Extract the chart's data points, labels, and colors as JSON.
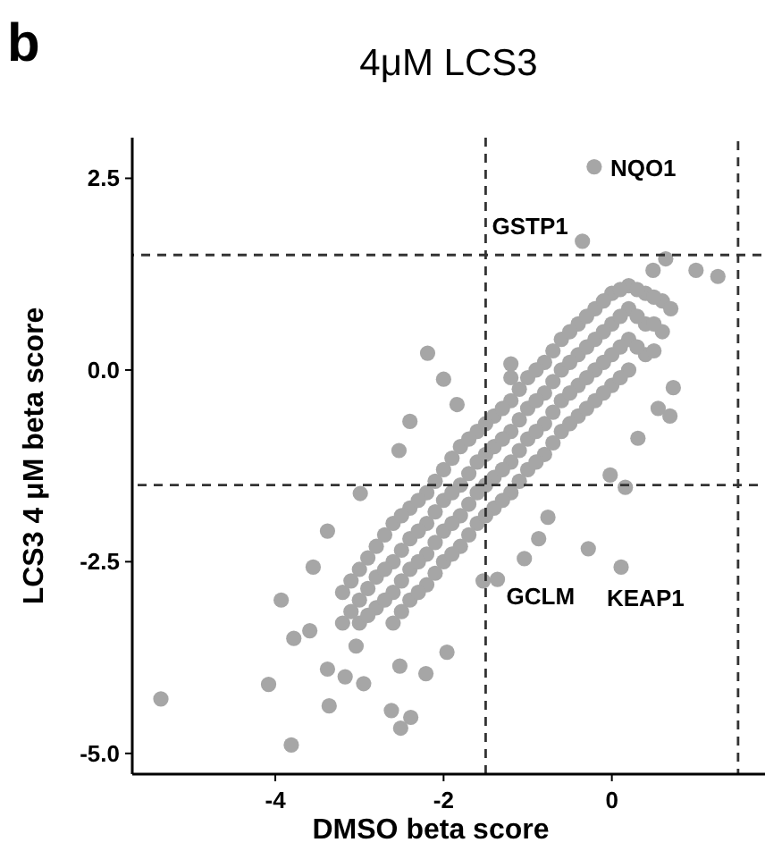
{
  "chart_data": {
    "type": "scatter",
    "title": "4μM LCS3",
    "xlabel": "DMSO beta score",
    "ylabel": "LCS3 4 μM beta score",
    "xlim": [
      -5.7,
      1.82
    ],
    "ylim": [
      -5.27,
      3.03
    ],
    "xticks": [
      -4,
      -2,
      0
    ],
    "yticks": [
      {
        "value": -5,
        "label": "-5.0"
      },
      -2.5,
      {
        "value": 0,
        "label": "0.0"
      },
      2.5
    ],
    "grid": false,
    "marker": "circle",
    "ref_lines": [
      {
        "axis": "x",
        "value": -1.5,
        "color": "#333333",
        "line_style": "dashed"
      },
      {
        "axis": "x",
        "value": 1.5,
        "color": "#333333",
        "line_style": "dashed"
      },
      {
        "axis": "y",
        "value": 1.5,
        "color": "#333333",
        "line_style": "dashed"
      },
      {
        "axis": "y",
        "value": -1.5,
        "color": "#333333",
        "line_style": "dashed"
      }
    ],
    "annotations": [
      "b",
      {
        "text": "NQO1",
        "x": -0.21,
        "y": 2.65
      },
      {
        "text": "GSTP1",
        "x": -0.35,
        "y": 1.68
      },
      {
        "text": "GCLM",
        "x": -1.36,
        "y": -2.73
      },
      {
        "text": "KEAP1",
        "x": 0.11,
        "y": -2.57
      }
    ],
    "series": [
      {
        "color": "#a6a6a6",
        "x": [
          -0.21,
          -0.35,
          -1.36,
          0.11,
          -2.19,
          -2.0,
          -1.84,
          -2.4,
          -1.2,
          -1.2,
          0.69,
          0.73,
          0.55,
          1.26,
          1.0,
          0.64,
          0.49,
          -2.53,
          -2.99,
          -5.36,
          -3.81,
          -4.08,
          -3.93,
          -3.78,
          -3.36,
          -2.62,
          -2.51,
          -2.39,
          -2.21,
          -1.96,
          -2.95,
          -3.38,
          -3.17,
          -3.55,
          -3.38,
          -3.59,
          -3.04,
          -2.52,
          -0.28,
          -0.02,
          0.16,
          0.31,
          -0.76,
          -0.87,
          -1.04,
          -1.53,
          -3.2,
          -3.2,
          -3.0,
          -3.0,
          -3.0,
          -2.8,
          -2.8,
          -2.8,
          -2.6,
          -2.6,
          -2.6,
          -2.6,
          -2.4,
          -2.4,
          -2.4,
          -2.4,
          -2.2,
          -2.2,
          -2.2,
          -2.2,
          -2.0,
          -2.0,
          -2.0,
          -2.0,
          -1.8,
          -1.8,
          -1.8,
          -1.8,
          -1.6,
          -1.6,
          -1.6,
          -1.6,
          -1.4,
          -1.4,
          -1.4,
          -1.4,
          -1.2,
          -1.2,
          -1.2,
          -1.2,
          -1.0,
          -1.0,
          -1.0,
          -1.0,
          -0.8,
          -0.8,
          -0.8,
          -0.8,
          -0.6,
          -0.6,
          -0.6,
          -0.6,
          -0.4,
          -0.4,
          -0.4,
          -0.4,
          -0.2,
          -0.2,
          -0.2,
          -0.2,
          0.0,
          0.0,
          0.0,
          0.0,
          0.2,
          0.2,
          0.2,
          0.2,
          0.4,
          0.4,
          0.4,
          0.6,
          0.6,
          -3.1,
          -3.1,
          -2.9,
          -2.9,
          -2.9,
          -2.7,
          -2.7,
          -2.7,
          -2.5,
          -2.5,
          -2.5,
          -2.5,
          -2.3,
          -2.3,
          -2.3,
          -2.3,
          -2.1,
          -2.1,
          -2.1,
          -2.1,
          -1.9,
          -1.9,
          -1.9,
          -1.9,
          -1.7,
          -1.7,
          -1.7,
          -1.7,
          -1.5,
          -1.5,
          -1.5,
          -1.5,
          -1.3,
          -1.3,
          -1.3,
          -1.3,
          -1.1,
          -1.1,
          -1.1,
          -1.1,
          -0.9,
          -0.9,
          -0.9,
          -0.9,
          -0.7,
          -0.7,
          -0.7,
          -0.7,
          -0.5,
          -0.5,
          -0.5,
          -0.5,
          -0.3,
          -0.3,
          -0.3,
          -0.3,
          -0.1,
          -0.1,
          -0.1,
          -0.1,
          0.1,
          0.1,
          0.1,
          0.1,
          0.3,
          0.3,
          0.3,
          0.5,
          0.5,
          0.5,
          0.7
        ],
        "values": [
          2.65,
          1.68,
          -2.73,
          -2.57,
          0.22,
          -0.12,
          -0.45,
          -0.67,
          0.08,
          -0.1,
          -0.6,
          -0.23,
          -0.5,
          1.22,
          1.3,
          1.45,
          1.3,
          -1.05,
          -1.61,
          -4.29,
          -4.89,
          -4.1,
          -3.0,
          -3.5,
          -4.38,
          -4.44,
          -4.67,
          -4.53,
          -3.96,
          -3.68,
          -4.09,
          -3.9,
          -4.0,
          -2.57,
          -2.1,
          -3.4,
          -3.6,
          -3.86,
          -2.33,
          -1.37,
          -1.53,
          -0.89,
          -1.92,
          -2.2,
          -2.46,
          -2.75,
          -2.9,
          -3.3,
          -2.6,
          -3.0,
          -3.3,
          -2.3,
          -2.7,
          -3.1,
          -2.0,
          -2.5,
          -2.9,
          -3.3,
          -1.8,
          -2.2,
          -2.6,
          -3.0,
          -1.6,
          -2.0,
          -2.4,
          -2.8,
          -1.3,
          -1.7,
          -2.1,
          -2.5,
          -1.0,
          -1.5,
          -1.9,
          -2.3,
          -0.8,
          -1.2,
          -1.6,
          -2.0,
          -0.6,
          -1.0,
          -1.4,
          -1.8,
          -0.4,
          -0.8,
          -1.2,
          -1.6,
          -0.1,
          -0.5,
          -0.9,
          -1.3,
          0.1,
          -0.3,
          -0.7,
          -1.1,
          0.4,
          0.0,
          -0.4,
          -0.8,
          0.6,
          0.2,
          -0.2,
          -0.6,
          0.8,
          0.4,
          0.0,
          -0.4,
          1.0,
          0.6,
          0.2,
          -0.2,
          1.1,
          0.8,
          0.4,
          0.0,
          1.0,
          0.6,
          0.2,
          0.9,
          0.5,
          -2.75,
          -3.15,
          -2.45,
          -2.85,
          -3.2,
          -2.15,
          -2.6,
          -3.0,
          -1.9,
          -2.35,
          -2.75,
          -3.15,
          -1.7,
          -2.1,
          -2.5,
          -2.9,
          -1.45,
          -1.85,
          -2.25,
          -2.65,
          -1.15,
          -1.6,
          -2.0,
          -2.4,
          -0.9,
          -1.35,
          -1.75,
          -2.15,
          -0.7,
          -1.1,
          -1.5,
          -1.9,
          -0.5,
          -0.9,
          -1.3,
          -1.7,
          -0.25,
          -0.65,
          -1.05,
          -1.45,
          0.0,
          -0.4,
          -0.8,
          -1.2,
          0.25,
          -0.15,
          -0.55,
          -0.95,
          0.5,
          0.1,
          -0.3,
          -0.7,
          0.7,
          0.3,
          -0.1,
          -0.5,
          0.9,
          0.5,
          0.1,
          -0.3,
          1.05,
          0.7,
          0.3,
          -0.1,
          1.05,
          0.7,
          0.3,
          0.95,
          0.6,
          0.25,
          0.8
        ]
      }
    ]
  }
}
